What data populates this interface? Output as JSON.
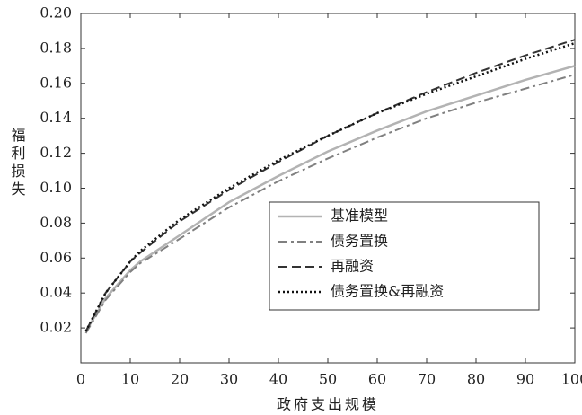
{
  "chart_data": {
    "type": "line",
    "x_label": "政府支出规模",
    "y_label": "福利损失",
    "x": [
      1,
      5,
      10,
      12,
      20,
      30,
      40,
      50,
      60,
      70,
      80,
      90,
      100
    ],
    "series": [
      {
        "name": "基准模型",
        "color": "#b3b3b3",
        "dash": "none",
        "width": 2.5,
        "values": [
          0.018,
          0.037,
          0.053,
          0.058,
          0.073,
          0.092,
          0.107,
          0.121,
          0.133,
          0.144,
          0.153,
          0.162,
          0.17
        ]
      },
      {
        "name": "债务置换",
        "color": "#808080",
        "dash": "10 4 3 4",
        "width": 2,
        "values": [
          0.017,
          0.036,
          0.052,
          0.057,
          0.071,
          0.089,
          0.104,
          0.117,
          0.129,
          0.14,
          0.149,
          0.157,
          0.165
        ]
      },
      {
        "name": "再融资",
        "color": "#333333",
        "dash": "10 5",
        "width": 2,
        "values": [
          0.018,
          0.04,
          0.058,
          0.063,
          0.081,
          0.099,
          0.115,
          0.13,
          0.143,
          0.155,
          0.166,
          0.176,
          0.185
        ]
      },
      {
        "name": "债务置换&再融资",
        "color": "#111111",
        "dash": "2 3",
        "width": 2.5,
        "values": [
          0.018,
          0.04,
          0.058,
          0.064,
          0.082,
          0.1,
          0.116,
          0.13,
          0.143,
          0.154,
          0.164,
          0.174,
          0.183
        ]
      }
    ],
    "xlim": [
      0,
      100
    ],
    "xticks": [
      0,
      10,
      20,
      30,
      40,
      50,
      60,
      70,
      80,
      90,
      100
    ],
    "ylim": [
      0,
      0.2
    ],
    "yticks": [
      0.02,
      0.04,
      0.06,
      0.08,
      {
        "value": 0.1,
        "label": "0.10"
      },
      0.12,
      0.14,
      0.16,
      0.18,
      {
        "value": 0.2,
        "label": "0.20"
      }
    ],
    "grid": false,
    "legend": "lower right"
  }
}
